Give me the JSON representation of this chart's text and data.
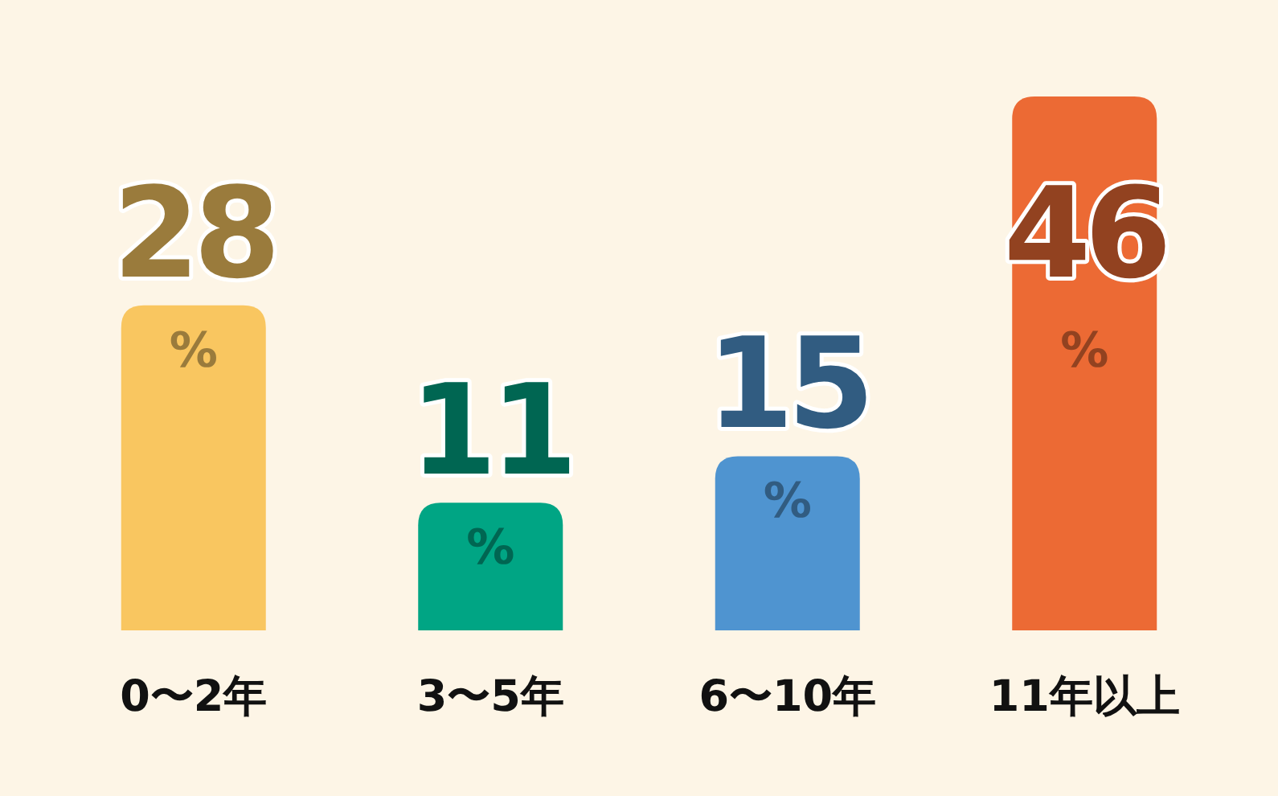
{
  "chart_data": {
    "type": "bar",
    "categories": [
      "0〜2年",
      "3〜5年",
      "6〜10年",
      "11年以上"
    ],
    "values": [
      28,
      11,
      15,
      46
    ],
    "colors": [
      "#f9c660",
      "#00a584",
      "#4f94d0",
      "#ec6a34"
    ],
    "value_labels": [
      "28%",
      "11%",
      "15%",
      "46%"
    ],
    "grid": false,
    "legend": false
  }
}
